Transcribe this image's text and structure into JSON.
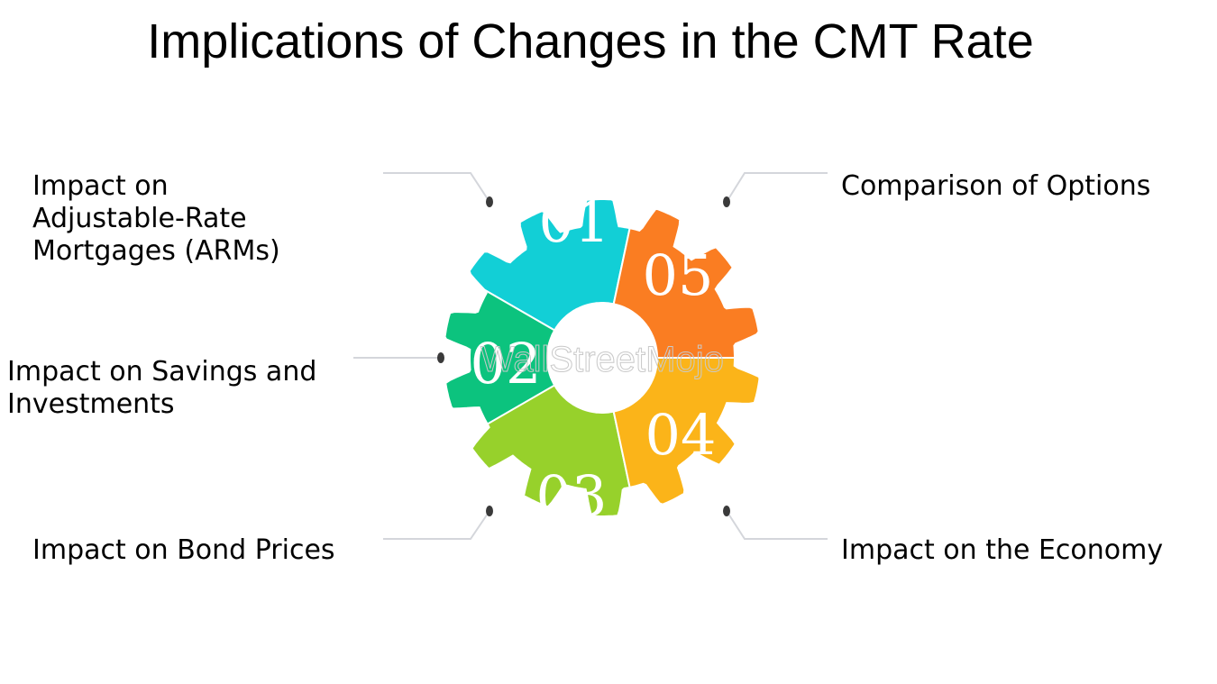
{
  "title": "Implications of Changes in the CMT Rate",
  "watermark": "WallStreetMojo",
  "segments": [
    {
      "number": "01",
      "label": "Impact on\nAdjustable-Rate\nMortgages (ARMs)",
      "color": "#12cfd6"
    },
    {
      "number": "02",
      "label": "Impact on Savings and\nInvestments",
      "color": "#0cc37e"
    },
    {
      "number": "03",
      "label": "Impact on Bond Prices",
      "color": "#97d12b"
    },
    {
      "number": "04",
      "label": "Impact on the Economy",
      "color": "#fbb419"
    },
    {
      "number": "05",
      "label": "Comparison of Options",
      "color": "#fa7d22"
    }
  ],
  "connector_color": "#d4d6db",
  "dot_color": "#3a3a3a"
}
